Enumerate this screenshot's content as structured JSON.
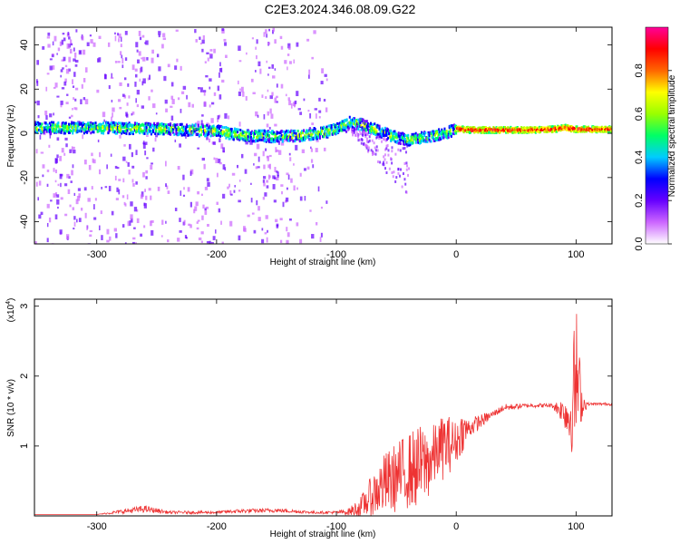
{
  "figure": {
    "title": "C2E3.2024.346.08.09.G22"
  },
  "chart_data": [
    {
      "type": "heatmap",
      "xlabel": "Height of straight line (km)",
      "ylabel": "Frequency (Hz)",
      "xlim": [
        -352,
        130
      ],
      "ylim": [
        -50,
        48
      ],
      "x_ticks": [
        -300,
        -200,
        -100,
        0,
        100
      ],
      "y_ticks": [
        -40,
        -20,
        0,
        20,
        40
      ],
      "colorbar": {
        "label": "Normalized spectral amplitude",
        "range": [
          0,
          1
        ],
        "ticks": [
          0.0,
          0.2,
          0.4,
          0.6,
          0.8
        ],
        "tick_labels": [
          "0.0",
          "0.2",
          "0.4",
          "0.6",
          "0.8"
        ],
        "colormap": [
          "#ffffff",
          "#cc66ff",
          "#6600ff",
          "#0000ff",
          "#00ccff",
          "#00ff66",
          "#99ff00",
          "#ffff00",
          "#ff6600",
          "#ff0000",
          "#ff0099"
        ]
      },
      "ridge": {
        "x": [
          -352,
          -300,
          -250,
          -200,
          -180,
          -150,
          -130,
          -110,
          -100,
          -90,
          -80,
          -70,
          -60,
          -50,
          -40,
          -30,
          -20,
          -10,
          0,
          10,
          30,
          60,
          80,
          90,
          100,
          130
        ],
        "y": [
          2.5,
          2.5,
          2.0,
          1.0,
          -1.0,
          -1.5,
          -1.0,
          0.5,
          2.0,
          5.0,
          4.0,
          2.0,
          0.0,
          -2.0,
          -3.0,
          -2.0,
          -1.0,
          0.0,
          2.0,
          1.5,
          1.5,
          1.5,
          1.8,
          2.5,
          1.8,
          1.8
        ]
      }
    },
    {
      "type": "line",
      "xlabel": "Height of straight line (km)",
      "ylabel": "SNR (10 * v/v)",
      "y_multiplier_label": "(x10",
      "y_multiplier_exp": "4",
      "y_multiplier_close": ")",
      "xlim": [
        -352,
        130
      ],
      "ylim": [
        0,
        3.1
      ],
      "x_ticks": [
        -300,
        -200,
        -100,
        0,
        100
      ],
      "y_ticks": [
        1,
        2,
        3
      ],
      "color": "#ee3333",
      "series": [
        {
          "x": [
            -352,
            -300,
            -280,
            -260,
            -240,
            -200,
            -180,
            -150,
            -120,
            -100,
            -90,
            -80,
            -70,
            -60,
            -50,
            -40,
            -30,
            -20,
            -15,
            -10,
            0,
            5,
            10,
            20,
            30,
            40,
            60,
            80,
            90,
            95,
            100,
            105,
            110,
            130
          ],
          "y": [
            0.02,
            0.02,
            0.06,
            0.1,
            0.05,
            0.05,
            0.07,
            0.08,
            0.05,
            0.05,
            0.06,
            0.12,
            0.3,
            0.45,
            0.55,
            0.65,
            0.7,
            0.8,
            0.95,
            1.0,
            1.05,
            1.2,
            1.25,
            1.35,
            1.45,
            1.55,
            1.58,
            1.58,
            1.5,
            1.4,
            2.0,
            1.6,
            1.6,
            1.6
          ],
          "noise_envelope": [
            0,
            0,
            0.03,
            0.05,
            0.02,
            0.02,
            0.03,
            0.03,
            0.02,
            0.02,
            0.05,
            0.15,
            0.3,
            0.45,
            0.5,
            0.55,
            0.6,
            0.5,
            0.4,
            0.5,
            0.3,
            0.3,
            0.15,
            0.1,
            0.05,
            0.05,
            0.03,
            0.03,
            0.2,
            0.5,
            1.1,
            0.2,
            0.02,
            0.02
          ]
        }
      ]
    }
  ]
}
